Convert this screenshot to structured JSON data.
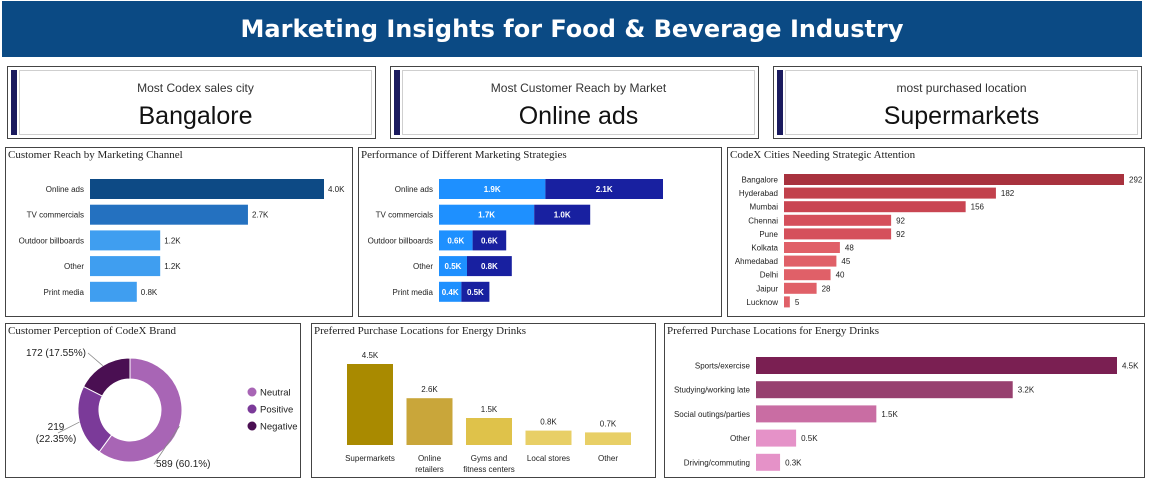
{
  "header": {
    "title": "Marketing Insights for Food & Beverage Industry"
  },
  "kpis": [
    {
      "label": "Most Codex sales city",
      "value": "Bangalore"
    },
    {
      "label": "Most Customer Reach by Market",
      "value": "Online ads"
    },
    {
      "label": "most purchased location",
      "value": "Supermarkets"
    }
  ],
  "chart_data": [
    {
      "type": "bar",
      "orientation": "horizontal",
      "title": "Customer Reach by Marketing Channel",
      "categories": [
        "Online ads",
        "TV commercials",
        "Outdoor billboards",
        "Other",
        "Print media"
      ],
      "values": [
        4000,
        2700,
        1200,
        1200,
        800
      ],
      "value_labels": [
        "4.0K",
        "2.7K",
        "1.2K",
        "1.2K",
        "0.8K"
      ],
      "colors": [
        "#0d4a85",
        "#2471c0",
        "#3f9ef0",
        "#3f9ef0",
        "#3f9ef0"
      ]
    },
    {
      "type": "bar",
      "orientation": "horizontal",
      "stacked": true,
      "title": "Performance of Different Marketing Strategies",
      "categories": [
        "Online ads",
        "TV commercials",
        "Outdoor billboards",
        "Other",
        "Print media"
      ],
      "series": [
        {
          "values": [
            1900,
            1700,
            600,
            500,
            400
          ],
          "labels": [
            "1.9K",
            "1.7K",
            "0.6K",
            "0.5K",
            "0.4K"
          ],
          "color": "#1e90ff"
        },
        {
          "values": [
            2100,
            1000,
            600,
            800,
            500
          ],
          "labels": [
            "2.1K",
            "1.0K",
            "0.6K",
            "0.8K",
            "0.5K"
          ],
          "color": "#1820a0"
        }
      ]
    },
    {
      "type": "bar",
      "orientation": "horizontal",
      "title": "CodeX Cities Needing Strategic Attention",
      "categories": [
        "Bangalore",
        "Hyderabad",
        "Mumbai",
        "Chennai",
        "Pune",
        "Kolkata",
        "Ahmedabad",
        "Delhi",
        "Jaipur",
        "Lucknow"
      ],
      "values": [
        292,
        182,
        156,
        92,
        92,
        48,
        45,
        40,
        28,
        5
      ],
      "colors": [
        "#a8323e",
        "#c2414c",
        "#c94552",
        "#d5505c",
        "#d5505c",
        "#e06068",
        "#e06068",
        "#e06068",
        "#e06068",
        "#e06068"
      ]
    },
    {
      "type": "pie",
      "donut": true,
      "title": "Customer Perception of CodeX Brand",
      "categories": [
        "Neutral",
        "Positive",
        "Negative"
      ],
      "values": [
        589,
        219,
        172
      ],
      "slice_labels": [
        "589 (60.1%)",
        "219\n(22.35%)",
        "172 (17.55%)"
      ],
      "colors": [
        "#a865b5",
        "#7b3a99",
        "#4a0f52"
      ],
      "legend": "right"
    },
    {
      "type": "bar",
      "orientation": "vertical",
      "title": "Preferred Purchase Locations for Energy Drinks",
      "categories": [
        "Supermarkets",
        "Online retailers",
        "Gyms and fitness centers",
        "Local stores",
        "Other"
      ],
      "category_lines": [
        [
          "Supermarkets"
        ],
        [
          "Online",
          "retailers"
        ],
        [
          "Gyms and",
          "fitness centers"
        ],
        [
          "Local stores"
        ],
        [
          "Other"
        ]
      ],
      "values": [
        4500,
        2600,
        1500,
        800,
        700
      ],
      "value_labels": [
        "4.5K",
        "2.6K",
        "1.5K",
        "0.8K",
        "0.7K"
      ],
      "colors": [
        "#a98a00",
        "#c9a63a",
        "#dfc24a",
        "#e8cf66",
        "#e8cf66"
      ]
    },
    {
      "type": "bar",
      "orientation": "horizontal",
      "title": "Preferred Purchase Locations for Energy Drinks",
      "categories": [
        "Sports/exercise",
        "Studying/working late",
        "Social outings/parties",
        "Other",
        "Driving/commuting"
      ],
      "values": [
        4500,
        3200,
        1500,
        500,
        300
      ],
      "value_labels": [
        "4.5K",
        "3.2K",
        "1.5K",
        "0.5K",
        "0.3K"
      ],
      "colors": [
        "#7a1f52",
        "#97406f",
        "#c96da3",
        "#e592c8",
        "#e592c8"
      ]
    }
  ]
}
